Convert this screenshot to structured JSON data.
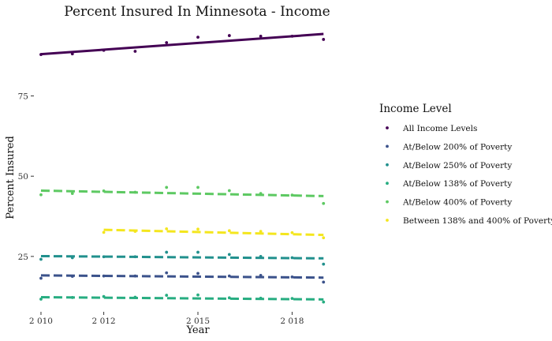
{
  "chart_data": {
    "type": "scatter",
    "title": "Percent Insured In Minnesota - Income",
    "xlabel": "Year",
    "ylabel": "Percent Insured",
    "xlim": [
      2009.8,
      2020.3
    ],
    "ylim": [
      8,
      98
    ],
    "xticks": [
      2010,
      2012,
      2015,
      2018
    ],
    "xtick_labels": [
      "2 010",
      "2 012",
      "2 015",
      "2 018"
    ],
    "yticks": [
      25,
      50,
      75
    ],
    "grid": false,
    "legend_title": "Income Level",
    "legend_position": "right",
    "series": [
      {
        "name": "All Income Levels",
        "color": "#440154",
        "line_style": "solid",
        "points": [
          [
            2010,
            87.9
          ],
          [
            2011,
            88.1
          ],
          [
            2012,
            89.2
          ],
          [
            2013,
            88.9
          ],
          [
            2014,
            91.6
          ],
          [
            2015,
            93.3
          ],
          [
            2016,
            93.8
          ],
          [
            2017,
            93.6
          ],
          [
            2018,
            93.6
          ],
          [
            2019,
            92.6
          ]
        ],
        "trend": [
          [
            2010,
            88.0
          ],
          [
            2019,
            94.3
          ]
        ]
      },
      {
        "name": "At/Below 200% of Poverty",
        "color": "#3b528b",
        "line_style": "dashed",
        "points": [
          [
            2010,
            18.2
          ],
          [
            2011,
            18.8
          ],
          [
            2012,
            18.9
          ],
          [
            2013,
            18.9
          ],
          [
            2014,
            19.9
          ],
          [
            2015,
            19.7
          ],
          [
            2016,
            18.9
          ],
          [
            2017,
            19.1
          ],
          [
            2018,
            18.6
          ],
          [
            2019,
            17.0
          ]
        ],
        "trend": [
          [
            2010,
            19.1
          ],
          [
            2019,
            18.4
          ]
        ]
      },
      {
        "name": "At/Below 250% of Poverty",
        "color": "#21908d",
        "line_style": "dashed",
        "points": [
          [
            2010,
            24.1
          ],
          [
            2011,
            24.6
          ],
          [
            2012,
            24.9
          ],
          [
            2013,
            24.9
          ],
          [
            2014,
            26.3
          ],
          [
            2015,
            26.3
          ],
          [
            2016,
            25.6
          ],
          [
            2017,
            25.0
          ],
          [
            2018,
            24.6
          ],
          [
            2019,
            22.6
          ]
        ],
        "trend": [
          [
            2010,
            25.1
          ],
          [
            2019,
            24.4
          ]
        ]
      },
      {
        "name": "At/Below 138% of Poverty",
        "color": "#27ad81",
        "line_style": "dashed",
        "points": [
          [
            2010,
            11.7
          ],
          [
            2011,
            12.2
          ],
          [
            2012,
            12.5
          ],
          [
            2013,
            12.3
          ],
          [
            2014,
            12.9
          ],
          [
            2015,
            13.0
          ],
          [
            2016,
            12.1
          ],
          [
            2017,
            12.0
          ],
          [
            2018,
            11.9
          ],
          [
            2019,
            10.8
          ]
        ],
        "trend": [
          [
            2010,
            12.3
          ],
          [
            2019,
            11.6
          ]
        ]
      },
      {
        "name": "At/Below 400% of Poverty",
        "color": "#5dc962",
        "line_style": "dashed",
        "points": [
          [
            2010,
            44.2
          ],
          [
            2011,
            44.6
          ],
          [
            2012,
            45.4
          ],
          [
            2013,
            45.0
          ],
          [
            2014,
            46.5
          ],
          [
            2015,
            46.5
          ],
          [
            2016,
            45.5
          ],
          [
            2017,
            44.6
          ],
          [
            2018,
            44.1
          ],
          [
            2019,
            41.5
          ]
        ],
        "trend": [
          [
            2010,
            45.5
          ],
          [
            2019,
            43.8
          ]
        ]
      },
      {
        "name": "Between 138% and 400% of Poverty",
        "color": "#f4e61e",
        "line_style": "dashed",
        "points": [
          [
            2012,
            32.5
          ],
          [
            2013,
            32.8
          ],
          [
            2014,
            33.6
          ],
          [
            2015,
            33.5
          ],
          [
            2016,
            33.0
          ],
          [
            2017,
            32.8
          ],
          [
            2018,
            32.4
          ],
          [
            2019,
            30.8
          ]
        ],
        "trend": [
          [
            2012,
            33.3
          ],
          [
            2019,
            31.7
          ]
        ]
      }
    ]
  }
}
